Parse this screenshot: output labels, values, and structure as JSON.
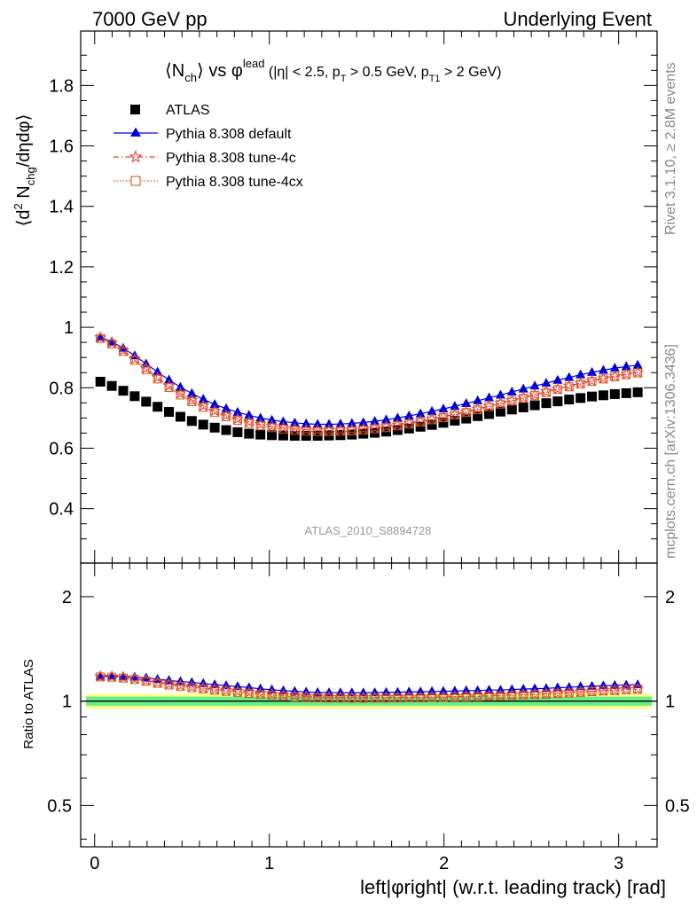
{
  "header": {
    "left": "7000 GeV pp",
    "right": "Underlying Event"
  },
  "side_labels": {
    "rivet": "Rivet 3.1.10, ≥ 2.8M events",
    "mcplots": "mcplots.cern.ch [arXiv:1306.3436]"
  },
  "colors": {
    "atlas": "#000000",
    "default": "#0000dd",
    "tune4c": "#e8423a",
    "tune4cx": "#d45a1a",
    "band_inner": "#66ee88",
    "band_outer": "#ffff88"
  },
  "chart_data": [
    {
      "type": "scatter",
      "panel": "main",
      "title_parts": {
        "t1": "⟨N",
        "t1sub": "ch",
        "t2": "⟩ vs φ",
        "t2sup": "lead",
        "t3": " (|η| < 2.5, p",
        "t3sub": "T",
        "t4": " > 0.5 GeV, p",
        "t4sub": "T1",
        "t5": " > 2 GeV)"
      },
      "ylabel_parts": {
        "a": "⟨d",
        "asup": "2",
        "b": " N",
        "bsub": "chg",
        "c": "/dηdφ⟩"
      },
      "watermark": "ATLAS_2010_S8894728",
      "xlim": [
        -0.08,
        3.22
      ],
      "ylim": [
        0.22,
        1.98
      ],
      "yticks": [
        "0.4",
        "0.6",
        "0.8",
        "1",
        "1.2",
        "1.4",
        "1.6",
        "1.8"
      ],
      "legend_position": "top-left",
      "x": [
        0.0327,
        0.0982,
        0.1636,
        0.2291,
        0.2945,
        0.36,
        0.4254,
        0.4909,
        0.5563,
        0.6218,
        0.6872,
        0.7527,
        0.8181,
        0.8836,
        0.949,
        1.0145,
        1.0799,
        1.1454,
        1.2108,
        1.2763,
        1.3417,
        1.4072,
        1.4726,
        1.5381,
        1.6035,
        1.669,
        1.7344,
        1.7999,
        1.8653,
        1.9308,
        1.9962,
        2.0617,
        2.1271,
        2.1926,
        2.258,
        2.3235,
        2.3889,
        2.4544,
        2.5198,
        2.5853,
        2.6507,
        2.7162,
        2.7816,
        2.8471,
        2.9125,
        2.978,
        3.0434,
        3.1089
      ],
      "series": [
        {
          "name": "ATLAS",
          "marker": "square",
          "values": [
            0.82,
            0.806,
            0.79,
            0.772,
            0.754,
            0.737,
            0.72,
            0.704,
            0.69,
            0.678,
            0.668,
            0.66,
            0.653,
            0.648,
            0.645,
            0.643,
            0.642,
            0.641,
            0.641,
            0.641,
            0.642,
            0.643,
            0.645,
            0.648,
            0.651,
            0.655,
            0.66,
            0.665,
            0.671,
            0.677,
            0.684,
            0.691,
            0.698,
            0.706,
            0.713,
            0.721,
            0.728,
            0.735,
            0.742,
            0.749,
            0.755,
            0.761,
            0.766,
            0.771,
            0.775,
            0.779,
            0.782,
            0.785
          ]
        },
        {
          "name": "Pythia 8.308 default",
          "marker": "triangle",
          "values": [
            0.967,
            0.952,
            0.931,
            0.906,
            0.879,
            0.852,
            0.826,
            0.802,
            0.781,
            0.762,
            0.745,
            0.731,
            0.719,
            0.709,
            0.7,
            0.693,
            0.688,
            0.684,
            0.681,
            0.679,
            0.679,
            0.68,
            0.682,
            0.685,
            0.689,
            0.694,
            0.7,
            0.707,
            0.714,
            0.722,
            0.73,
            0.739,
            0.748,
            0.757,
            0.767,
            0.776,
            0.786,
            0.796,
            0.806,
            0.815,
            0.825,
            0.834,
            0.843,
            0.851,
            0.858,
            0.865,
            0.87,
            0.875
          ]
        },
        {
          "name": "Pythia 8.308 tune-4c",
          "marker": "star",
          "values": [
            0.966,
            0.948,
            0.924,
            0.895,
            0.864,
            0.834,
            0.806,
            0.781,
            0.759,
            0.74,
            0.723,
            0.709,
            0.697,
            0.687,
            0.679,
            0.673,
            0.668,
            0.664,
            0.661,
            0.66,
            0.659,
            0.66,
            0.661,
            0.664,
            0.667,
            0.672,
            0.677,
            0.683,
            0.689,
            0.696,
            0.704,
            0.712,
            0.721,
            0.73,
            0.739,
            0.749,
            0.758,
            0.768,
            0.777,
            0.787,
            0.796,
            0.806,
            0.815,
            0.823,
            0.831,
            0.838,
            0.845,
            0.851
          ]
        },
        {
          "name": "Pythia 8.308 tune-4cx",
          "marker": "open-square",
          "values": [
            0.963,
            0.945,
            0.92,
            0.891,
            0.86,
            0.829,
            0.801,
            0.776,
            0.754,
            0.735,
            0.718,
            0.704,
            0.692,
            0.682,
            0.674,
            0.668,
            0.663,
            0.659,
            0.656,
            0.655,
            0.655,
            0.656,
            0.657,
            0.66,
            0.664,
            0.668,
            0.674,
            0.68,
            0.686,
            0.694,
            0.701,
            0.71,
            0.718,
            0.727,
            0.737,
            0.746,
            0.756,
            0.765,
            0.775,
            0.784,
            0.794,
            0.803,
            0.812,
            0.821,
            0.829,
            0.836,
            0.843,
            0.849
          ]
        }
      ]
    },
    {
      "type": "line",
      "panel": "ratio",
      "ylabel": "Ratio to ATLAS",
      "xlabel": "left|φright| (w.r.t. leading track) [rad]",
      "xlim": [
        -0.08,
        3.22
      ],
      "ylim": [
        0.38,
        2.5
      ],
      "log_y": true,
      "yticks": [
        "0.5",
        "1",
        "2"
      ],
      "xticks": [
        "0",
        "1",
        "2",
        "3"
      ],
      "band_inner": [
        0.97,
        1.03
      ],
      "band_outer": [
        0.95,
        1.05
      ],
      "series": [
        {
          "name": "Pythia 8.308 default",
          "values": [
            1.179,
            1.181,
            1.178,
            1.173,
            1.166,
            1.156,
            1.147,
            1.139,
            1.132,
            1.124,
            1.115,
            1.108,
            1.101,
            1.094,
            1.085,
            1.078,
            1.072,
            1.067,
            1.062,
            1.059,
            1.058,
            1.058,
            1.057,
            1.057,
            1.058,
            1.06,
            1.061,
            1.063,
            1.064,
            1.066,
            1.067,
            1.069,
            1.072,
            1.072,
            1.076,
            1.076,
            1.08,
            1.083,
            1.086,
            1.088,
            1.093,
            1.096,
            1.101,
            1.104,
            1.107,
            1.11,
            1.113,
            1.115
          ]
        },
        {
          "name": "Pythia 8.308 tune-4c",
          "values": [
            1.178,
            1.176,
            1.17,
            1.16,
            1.146,
            1.132,
            1.119,
            1.109,
            1.1,
            1.091,
            1.082,
            1.074,
            1.067,
            1.06,
            1.053,
            1.047,
            1.04,
            1.036,
            1.031,
            1.03,
            1.027,
            1.026,
            1.025,
            1.025,
            1.025,
            1.026,
            1.026,
            1.027,
            1.027,
            1.028,
            1.029,
            1.03,
            1.033,
            1.034,
            1.036,
            1.039,
            1.041,
            1.045,
            1.047,
            1.051,
            1.054,
            1.059,
            1.064,
            1.067,
            1.072,
            1.076,
            1.081,
            1.084
          ]
        },
        {
          "name": "Pythia 8.308 tune-4cx",
          "values": [
            1.174,
            1.172,
            1.165,
            1.154,
            1.141,
            1.125,
            1.113,
            1.102,
            1.093,
            1.084,
            1.075,
            1.067,
            1.06,
            1.052,
            1.045,
            1.039,
            1.033,
            1.028,
            1.023,
            1.022,
            1.02,
            1.02,
            1.019,
            1.019,
            1.02,
            1.02,
            1.021,
            1.023,
            1.022,
            1.025,
            1.025,
            1.028,
            1.029,
            1.03,
            1.034,
            1.035,
            1.038,
            1.041,
            1.044,
            1.047,
            1.052,
            1.055,
            1.06,
            1.065,
            1.07,
            1.073,
            1.078,
            1.082
          ]
        }
      ]
    }
  ]
}
